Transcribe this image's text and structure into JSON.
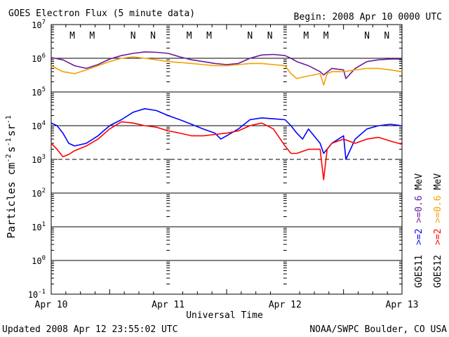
{
  "header": {
    "title": "GOES Electron Flux (5 minute data)",
    "begin": "Begin: 2008 Apr 10 0000 UTC"
  },
  "footer": {
    "updated": "Updated 2008 Apr 12 23:55:02 UTC",
    "source": "NOAA/SWPC Boulder, CO USA"
  },
  "right_labels": {
    "goes11": "GOES11",
    "goes12": "GOES12",
    "g11_high": ">=2",
    "g11_low": ">=0.6",
    "g11_unit": "MeV",
    "g12_high": ">=2",
    "g12_low": ">=0.6",
    "g12_unit": "MeV"
  },
  "colors": {
    "g11_high": "#0000ff",
    "g11_low": "#6a1b9a",
    "g12_high": "#ff0000",
    "g12_low": "#f5a000"
  },
  "chart_data": {
    "type": "line",
    "title": "GOES Electron Flux (5 minute data)",
    "xlabel": "Universal Time",
    "ylabel": "Particles cm-2 s-1 sr-1",
    "ylabel_parts": {
      "base": "Particles cm",
      "e1": "-2",
      "s": "s",
      "e2": "-1",
      "sr": "sr",
      "e3": "-1"
    },
    "x_unit": "days since 2008 Apr 10 0000 UTC",
    "xlim": [
      0,
      3
    ],
    "ylim_log10": [
      -1,
      7
    ],
    "y_scale": "log",
    "x_ticks": [
      {
        "x": 0,
        "label": "Apr 10"
      },
      {
        "x": 1,
        "label": "Apr 11"
      },
      {
        "x": 2,
        "label": "Apr 12"
      },
      {
        "x": 3,
        "label": "Apr 13"
      }
    ],
    "y_ticks": [
      {
        "exp": 7,
        "label": "10",
        "sup": "7"
      },
      {
        "exp": 6,
        "label": "10",
        "sup": "6"
      },
      {
        "exp": 5,
        "label": "10",
        "sup": "5"
      },
      {
        "exp": 4,
        "label": "10",
        "sup": "4"
      },
      {
        "exp": 3,
        "label": "10",
        "sup": "3"
      },
      {
        "exp": 2,
        "label": "10",
        "sup": "2"
      },
      {
        "exp": 1,
        "label": "10",
        "sup": "1"
      },
      {
        "exp": 0,
        "label": "10",
        "sup": "0"
      },
      {
        "exp": -1,
        "label": "10",
        "sup": "-1"
      }
    ],
    "threshold": {
      "y_exp": 3,
      "style": "dashed"
    },
    "markers": [
      {
        "x": 0.18,
        "label": "M",
        "color": "#0000ff"
      },
      {
        "x": 0.35,
        "label": "M",
        "color": "#ff0000"
      },
      {
        "x": 0.7,
        "label": "N",
        "color": "#0000ff"
      },
      {
        "x": 0.87,
        "label": "N",
        "color": "#ff0000"
      },
      {
        "x": 1.18,
        "label": "M",
        "color": "#0000ff"
      },
      {
        "x": 1.35,
        "label": "M",
        "color": "#ff0000"
      },
      {
        "x": 1.7,
        "label": "N",
        "color": "#0000ff"
      },
      {
        "x": 1.87,
        "label": "N",
        "color": "#ff0000"
      },
      {
        "x": 2.18,
        "label": "M",
        "color": "#0000ff"
      },
      {
        "x": 2.35,
        "label": "M",
        "color": "#ff0000"
      },
      {
        "x": 2.7,
        "label": "N",
        "color": "#0000ff"
      },
      {
        "x": 2.87,
        "label": "N",
        "color": "#ff0000"
      }
    ],
    "series": [
      {
        "name": "GOES11 >=0.6 MeV",
        "color": "#6a1b9a",
        "x": [
          0,
          0.1,
          0.2,
          0.3,
          0.4,
          0.5,
          0.6,
          0.7,
          0.8,
          0.9,
          1.0,
          1.1,
          1.2,
          1.3,
          1.4,
          1.5,
          1.6,
          1.7,
          1.8,
          1.9,
          2.0,
          2.05,
          2.1,
          2.2,
          2.3,
          2.33,
          2.4,
          2.5,
          2.52,
          2.6,
          2.7,
          2.8,
          2.9,
          3.0
        ],
        "y": [
          1050000.0,
          900000.0,
          600000.0,
          500000.0,
          650000.0,
          950000.0,
          1200000.0,
          1400000.0,
          1550000.0,
          1500000.0,
          1400000.0,
          1100000.0,
          900000.0,
          800000.0,
          700000.0,
          650000.0,
          700000.0,
          1000000.0,
          1250000.0,
          1300000.0,
          1200000.0,
          1000000.0,
          800000.0,
          600000.0,
          400000.0,
          320000.0,
          500000.0,
          450000.0,
          250000.0,
          500000.0,
          800000.0,
          900000.0,
          950000.0,
          950000.0
        ]
      },
      {
        "name": "GOES12 >=0.6 MeV",
        "color": "#f5a000",
        "x": [
          0,
          0.1,
          0.2,
          0.3,
          0.4,
          0.5,
          0.6,
          0.7,
          0.8,
          0.9,
          1.0,
          1.1,
          1.2,
          1.3,
          1.4,
          1.5,
          1.6,
          1.7,
          1.8,
          1.9,
          2.0,
          2.05,
          2.1,
          2.2,
          2.3,
          2.33,
          2.36,
          2.4,
          2.5,
          2.6,
          2.7,
          2.8,
          2.9,
          3.0
        ],
        "y": [
          600000.0,
          400000.0,
          350000.0,
          450000.0,
          600000.0,
          800000.0,
          1000000.0,
          1100000.0,
          1000000.0,
          900000.0,
          800000.0,
          750000.0,
          700000.0,
          650000.0,
          600000.0,
          600000.0,
          650000.0,
          700000.0,
          700000.0,
          650000.0,
          600000.0,
          350000.0,
          250000.0,
          300000.0,
          350000.0,
          160000.0,
          350000.0,
          400000.0,
          400000.0,
          450000.0,
          500000.0,
          500000.0,
          450000.0,
          400000.0
        ]
      },
      {
        "name": "GOES11 >=2 MeV",
        "color": "#0000ff",
        "x": [
          0,
          0.05,
          0.1,
          0.15,
          0.2,
          0.3,
          0.4,
          0.5,
          0.6,
          0.7,
          0.8,
          0.9,
          1.0,
          1.1,
          1.2,
          1.3,
          1.4,
          1.45,
          1.5,
          1.6,
          1.7,
          1.8,
          1.9,
          2.0,
          2.05,
          2.1,
          2.15,
          2.2,
          2.3,
          2.33,
          2.4,
          2.5,
          2.52,
          2.6,
          2.7,
          2.8,
          2.9,
          3.0
        ],
        "y": [
          12000.0,
          10000.0,
          6000.0,
          3000.0,
          2500.0,
          3000.0,
          5000.0,
          10000.0,
          15000.0,
          25000.0,
          32000.0,
          28000.0,
          20000.0,
          15000.0,
          11000.0,
          8000.0,
          6000.0,
          4000.0,
          5000.0,
          8000.0,
          15000.0,
          17000.0,
          16000.0,
          15000.0,
          10000.0,
          6000.0,
          4000.0,
          8000.0,
          3000.0,
          1500.0,
          3000.0,
          5000.0,
          1000.0,
          4000.0,
          8000.0,
          10000.0,
          11000.0,
          10000.0
        ]
      },
      {
        "name": "GOES12 >=2 MeV",
        "color": "#ff0000",
        "x": [
          0,
          0.05,
          0.1,
          0.15,
          0.2,
          0.3,
          0.4,
          0.5,
          0.6,
          0.7,
          0.8,
          0.9,
          1.0,
          1.1,
          1.2,
          1.3,
          1.4,
          1.5,
          1.6,
          1.7,
          1.8,
          1.9,
          2.0,
          2.05,
          2.1,
          2.2,
          2.3,
          2.33,
          2.36,
          2.4,
          2.5,
          2.6,
          2.7,
          2.8,
          2.9,
          3.0
        ],
        "y": [
          3000.0,
          2000.0,
          1200.0,
          1400.0,
          1800.0,
          2500.0,
          4000.0,
          8000.0,
          13000.0,
          12000.0,
          10000.0,
          9000.0,
          7000.0,
          6000.0,
          5000.0,
          5000.0,
          5500.0,
          6000.0,
          7000.0,
          10000.0,
          12000.0,
          8000.0,
          2500.0,
          1500.0,
          1500.0,
          2000.0,
          2000.0,
          250.0,
          2000.0,
          3000.0,
          4000.0,
          3000.0,
          4000.0,
          4500.0,
          3500.0,
          2800.0
        ]
      }
    ]
  }
}
